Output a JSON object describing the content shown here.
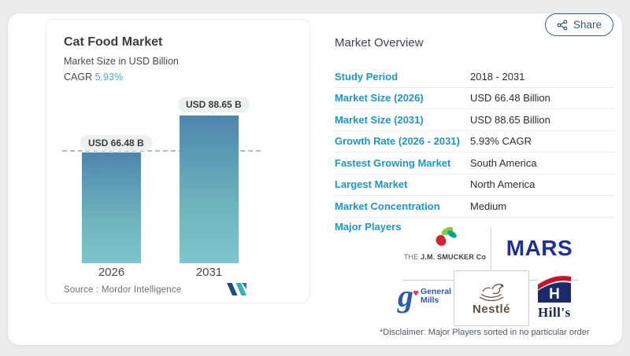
{
  "share": {
    "label": "Share"
  },
  "chart_card": {
    "title": "Cat Food Market",
    "subtitle": "Market Size in USD Billion",
    "cagr_label": "CAGR",
    "cagr_value": "5.93%",
    "source_label": "Source :",
    "source_value": "Mordor Intelligence"
  },
  "chart_data": {
    "type": "bar",
    "title": "Cat Food Market",
    "subtitle": "Market Size in USD Billion",
    "unit": "USD Billion",
    "categories": [
      "2026",
      "2031"
    ],
    "values": [
      66.48,
      88.65
    ],
    "bar_labels": [
      "USD 66.48 B",
      "USD 88.65 B"
    ],
    "cagr": "5.93%",
    "reference_line": {
      "y": 66.48,
      "style": "dashed"
    },
    "colors": {
      "bar_gradient_top": "#4d86ad",
      "bar_gradient_bottom": "#7dc6ca"
    },
    "legend": "none",
    "grid": "off"
  },
  "overview": {
    "title": "Market Overview",
    "rows": [
      {
        "label": "Study Period",
        "value": "2018 - 2031"
      },
      {
        "label": "Market Size (2026)",
        "value": "USD 66.48 Billion"
      },
      {
        "label": "Market Size (2031)",
        "value": "USD 88.65 Billion"
      },
      {
        "label": "Growth Rate (2026 - 2031)",
        "value": "5.93% CAGR"
      },
      {
        "label": "Fastest Growing Market",
        "value": "South America"
      },
      {
        "label": "Largest Market",
        "value": "North America"
      },
      {
        "label": "Market Concentration",
        "value": "Medium"
      }
    ],
    "major_players_label": "Major Players",
    "major_players": [
      "The J.M. Smucker Co",
      "Mars",
      "General Mills",
      "Nestlé",
      "Hill's"
    ],
    "disclaimer": "*Disclaimer: Major Players sorted in no particular order"
  },
  "logos": {
    "smucker_the": "THE ",
    "smucker_name": "J.M. SMUCKER",
    "smucker_co": " Co",
    "mars": "MARS",
    "general_mills_line1": "General",
    "general_mills_line2": "Mills",
    "general_mills_g": "g",
    "nestle": "Nestlé",
    "hills": "Hill's"
  },
  "colors": {
    "accent_blue": "#1d96c9",
    "cagr_teal": "#54a7c6",
    "share_navy": "#3b5a75",
    "mars_blue": "#1b2f9e",
    "gm_blue": "#2b5ca8",
    "hills_navy": "#1b2a6b",
    "hills_red": "#c8102e"
  }
}
